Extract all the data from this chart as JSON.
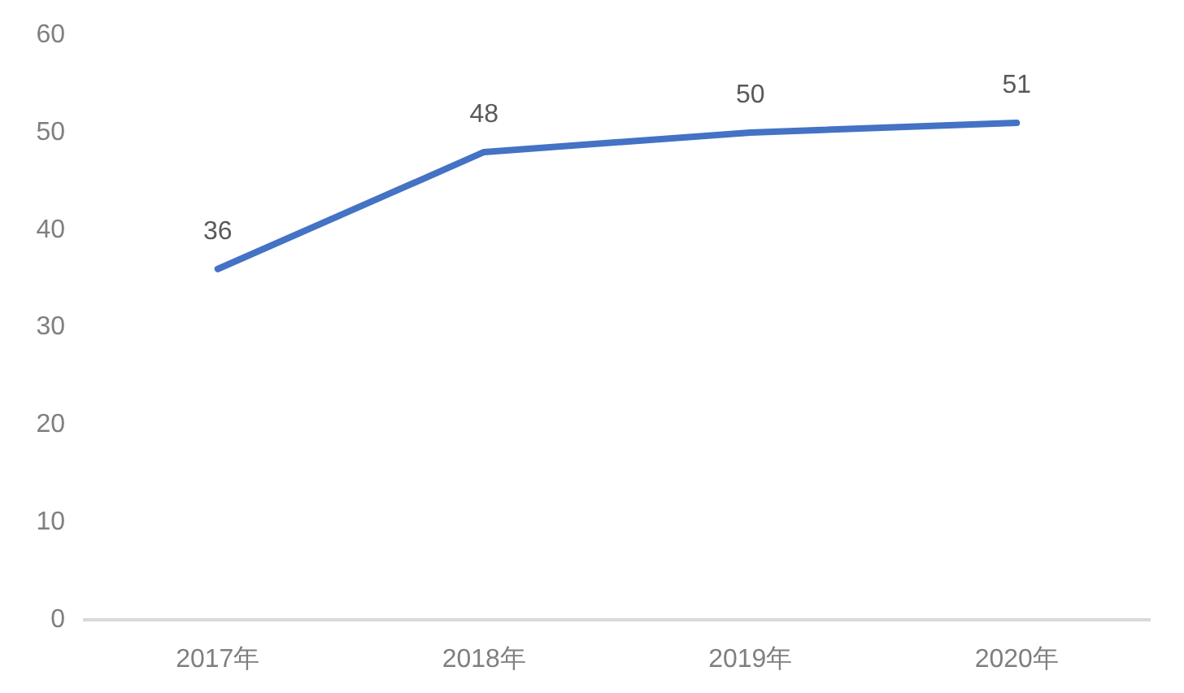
{
  "chart_data": {
    "type": "line",
    "categories": [
      "2017年",
      "2018年",
      "2019年",
      "2020年"
    ],
    "values": [
      36,
      48,
      50,
      51
    ],
    "color": "#4472c4",
    "ylim": [
      0,
      60
    ],
    "yticks": [
      0,
      10,
      20,
      30,
      40,
      50,
      60
    ],
    "grid": false,
    "legend": false,
    "marker": "none",
    "line_style": "solid",
    "data_labels": true
  }
}
